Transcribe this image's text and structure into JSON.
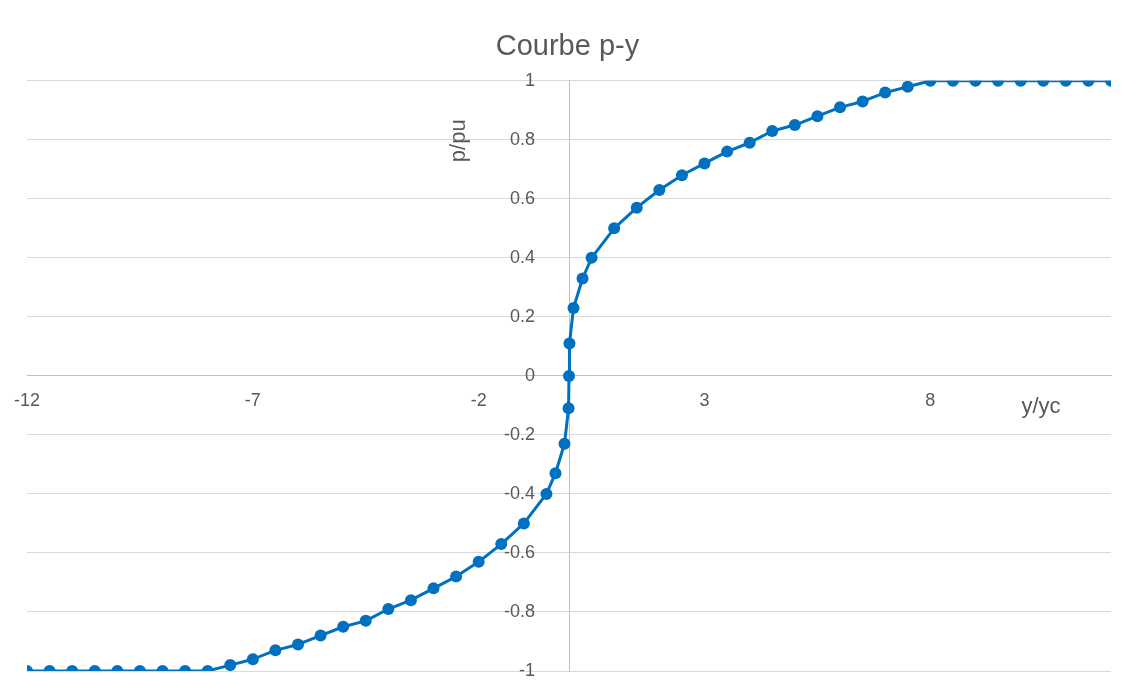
{
  "chart_data": {
    "type": "line",
    "title": "Courbe p-y",
    "xlabel": "y/yc",
    "ylabel": "p/pu",
    "x": [
      -12,
      -11.5,
      -11,
      -10.5,
      -10,
      -9.5,
      -9,
      -8.5,
      -8,
      -7.5,
      -7,
      -6.5,
      -6,
      -5.5,
      -5,
      -4.5,
      -4,
      -3.5,
      -3,
      -2.5,
      -2,
      -1.5,
      -1,
      -0.5,
      -0.3,
      -0.1,
      -0.01,
      0,
      0.01,
      0.1,
      0.3,
      0.5,
      1,
      1.5,
      2,
      2.5,
      3,
      3.5,
      4,
      4.5,
      5,
      5.5,
      6,
      6.5,
      7,
      7.5,
      8,
      8.5,
      9,
      9.5,
      10,
      10.5,
      11,
      11.5,
      12
    ],
    "series": [
      {
        "color": "#0070c0",
        "values": [
          -1,
          -1,
          -1,
          -1,
          -1,
          -1,
          -1,
          -1,
          -1,
          -0.98,
          -0.96,
          -0.93,
          -0.91,
          -0.88,
          -0.85,
          -0.83,
          -0.79,
          -0.76,
          -0.72,
          -0.68,
          -0.63,
          -0.57,
          -0.5,
          -0.4,
          -0.33,
          -0.23,
          -0.11,
          0,
          0.11,
          0.23,
          0.33,
          0.4,
          0.5,
          0.57,
          0.63,
          0.68,
          0.72,
          0.76,
          0.79,
          0.83,
          0.85,
          0.88,
          0.91,
          0.93,
          0.96,
          0.98,
          1,
          1,
          1,
          1,
          1,
          1,
          1,
          1,
          1
        ]
      }
    ],
    "xlim": [
      -12,
      12
    ],
    "xticks": [
      -12,
      -7,
      -2,
      3,
      8
    ],
    "ylim": [
      -1,
      1
    ],
    "yticks": [
      -1,
      -0.8,
      -0.6,
      -0.4,
      -0.2,
      0,
      0.2,
      0.4,
      0.6,
      0.8,
      1
    ],
    "grid": "y",
    "legend": false,
    "marker": "circle",
    "line_style": "solid"
  }
}
